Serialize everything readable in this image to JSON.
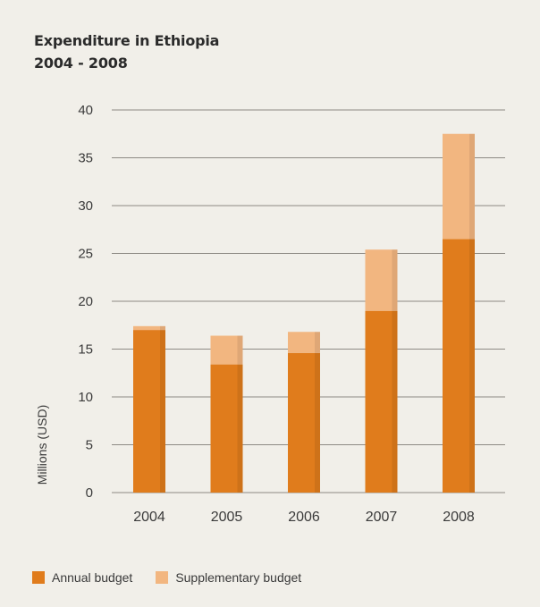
{
  "chart_data": {
    "type": "bar",
    "stacked": true,
    "title_lines": [
      "Expenditure in Ethiopia",
      "2004 - 2008"
    ],
    "categories": [
      "2004",
      "2005",
      "2006",
      "2007",
      "2008"
    ],
    "series": [
      {
        "name": "Annual budget",
        "values": [
          17,
          13.4,
          14.6,
          19,
          26.5
        ],
        "color": "#e07c1c"
      },
      {
        "name": "Supplementary budget",
        "values": [
          0.4,
          3,
          2.2,
          6.4,
          11
        ],
        "color": "#f2b680"
      }
    ],
    "ylabel": "Millions (USD)",
    "ylim": [
      0,
      40
    ],
    "yticks": [
      0,
      5,
      10,
      15,
      20,
      25,
      30,
      35,
      40
    ],
    "grid": true,
    "legend_position": "bottom"
  }
}
